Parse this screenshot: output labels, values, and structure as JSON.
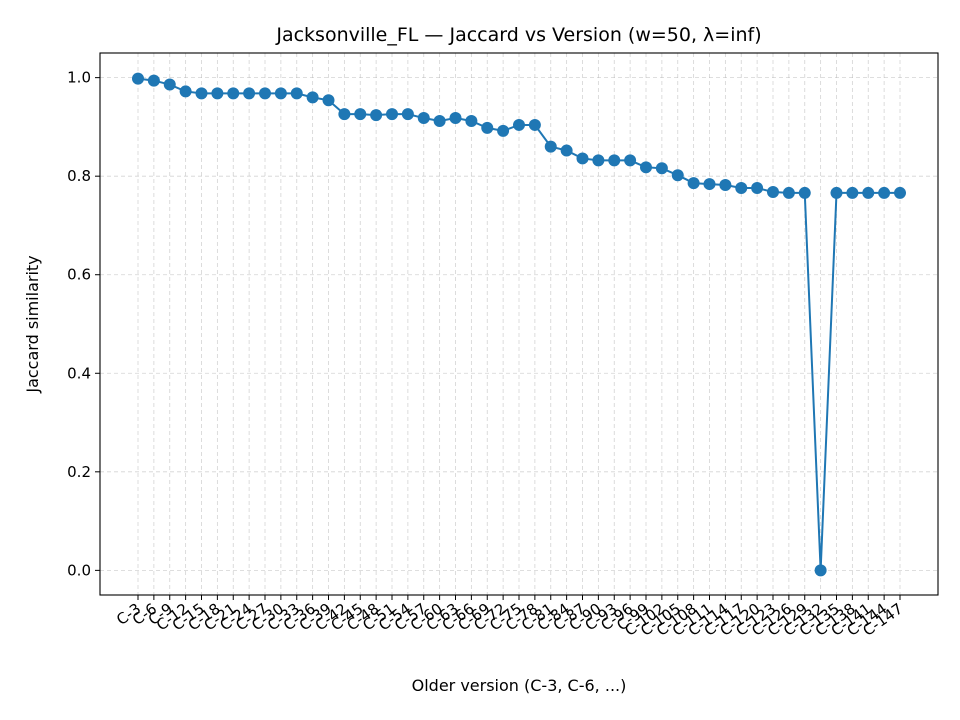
{
  "chart_data": {
    "type": "line",
    "title": "Jacksonville_FL — Jaccard vs Version (w=50, λ=inf)",
    "xlabel": "Older version (C-3, C-6, ...)",
    "ylabel": "Jaccard similarity",
    "ylim": [
      -0.05,
      1.05
    ],
    "yticks": [
      0.0,
      0.2,
      0.4,
      0.6,
      0.8,
      1.0
    ],
    "ytick_labels": [
      "0.0",
      "0.2",
      "0.4",
      "0.6",
      "0.8",
      "1.0"
    ],
    "grid": true,
    "line_color": "#1f77b4",
    "categories": [
      "C-3",
      "C-6",
      "C-9",
      "C-12",
      "C-15",
      "C-18",
      "C-21",
      "C-24",
      "C-27",
      "C-30",
      "C-33",
      "C-36",
      "C-39",
      "C-42",
      "C-45",
      "C-48",
      "C-51",
      "C-54",
      "C-57",
      "C-60",
      "C-63",
      "C-66",
      "C-69",
      "C-72",
      "C-75",
      "C-78",
      "C-81",
      "C-84",
      "C-87",
      "C-90",
      "C-93",
      "C-96",
      "C-99",
      "C-102",
      "C-105",
      "C-108",
      "C-111",
      "C-114",
      "C-117",
      "C-120",
      "C-123",
      "C-126",
      "C-129",
      "C-132",
      "C-135",
      "C-138",
      "C-141",
      "C-144",
      "C-147"
    ],
    "series": [
      {
        "values": [
          0.998,
          0.994,
          0.986,
          0.972,
          0.968,
          0.968,
          0.968,
          0.968,
          0.968,
          0.968,
          0.968,
          0.96,
          0.954,
          0.926,
          0.926,
          0.924,
          0.926,
          0.926,
          0.918,
          0.912,
          0.918,
          0.912,
          0.898,
          0.892,
          0.904,
          0.904,
          0.86,
          0.852,
          0.836,
          0.832,
          0.832,
          0.832,
          0.818,
          0.816,
          0.802,
          0.786,
          0.784,
          0.782,
          0.776,
          0.776,
          0.768,
          0.766,
          0.766,
          0.0,
          0.766,
          0.766,
          0.766,
          0.766,
          0.766
        ]
      }
    ]
  }
}
